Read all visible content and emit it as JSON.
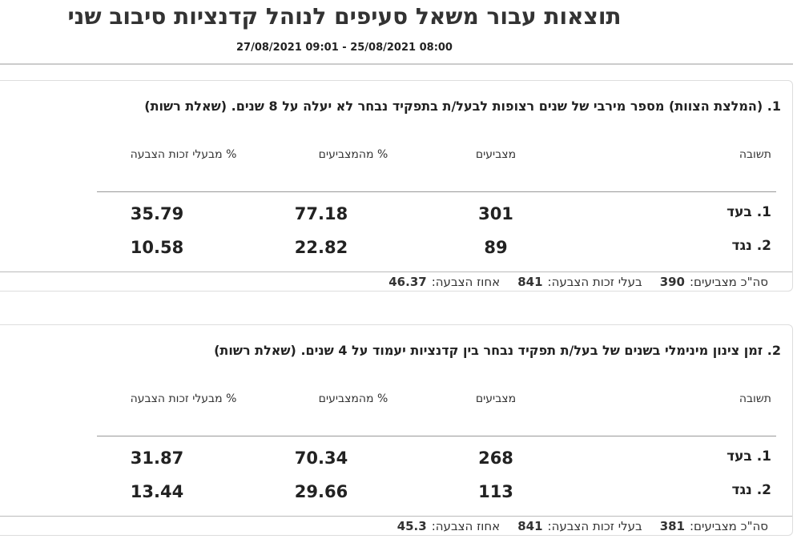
{
  "header": {
    "title": "תוצאות עבור משאל סעיפים לנוהל קדנציות סיבוב שני",
    "date_range": "27/08/2021 09:01 - 25/08/2021 08:00"
  },
  "questions": [
    {
      "title": "1. (המלצת הצוות) מספר מירבי של שנים רצופות לבעל/ת בתפקיד נבחר לא יעלה על 8 שנים. (שאלת רשות)",
      "columns": [
        "תשובה",
        "מצביעים",
        "% מהמצביעים",
        "% מבעלי זכות הצבעה"
      ],
      "rows": [
        [
          "1. בעד",
          301,
          77.18,
          35.79
        ],
        [
          "2. נגד",
          89,
          22.82,
          10.58
        ]
      ],
      "footer": {
        "voters_label": "סה\"כ מצביעים:",
        "voters": 390,
        "eligible_label": "בעלי זכות הצבעה:",
        "eligible": 841,
        "turnout_label": "אחוז הצבעה:",
        "turnout": 46.37
      }
    },
    {
      "title": "2. זמן צינון מינימלי בשנים של בעל/ת תפקיד נבחר בין קדנציות יעמוד על 4 שנים. (שאלת רשות)",
      "columns": [
        "תשובה",
        "מצביעים",
        "% מהמצביעים",
        "% מבעלי זכות הצבעה"
      ],
      "rows": [
        [
          "1. בעד",
          268,
          70.34,
          31.87
        ],
        [
          "2. נגד",
          113,
          29.66,
          13.44
        ]
      ],
      "footer": {
        "voters_label": "סה\"כ מצביעים:",
        "voters": 381,
        "eligible_label": "בעלי זכות הצבעה:",
        "eligible": 841,
        "turnout_label": "אחוז הצבעה:",
        "turnout": 45.3
      }
    }
  ]
}
